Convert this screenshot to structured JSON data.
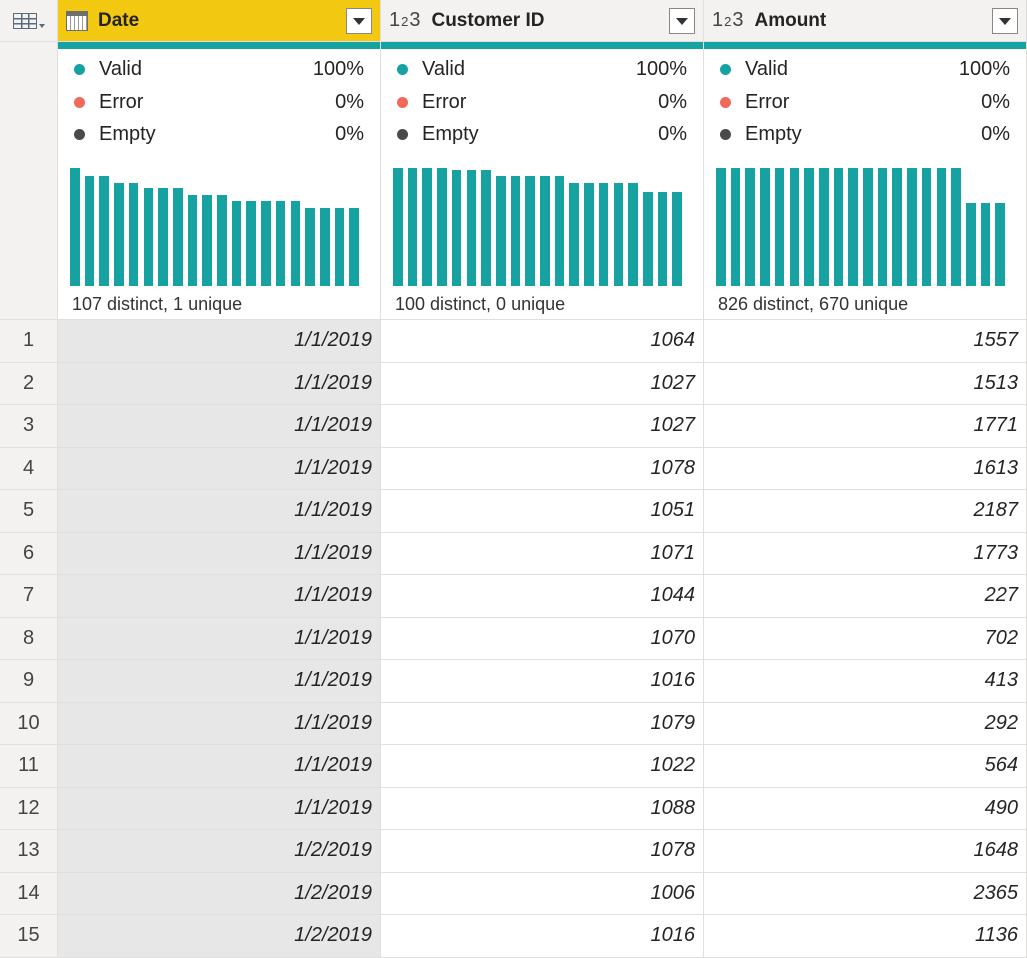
{
  "columns": [
    {
      "name": "Date",
      "type_icon": "calendar-icon",
      "selected": true,
      "quality": [
        {
          "label": "Valid",
          "pct": "100%",
          "color": "#17a2a2"
        },
        {
          "label": "Error",
          "pct": "0%",
          "color": "#f0695a"
        },
        {
          "label": "Empty",
          "pct": "0%",
          "color": "#4a4a4a"
        }
      ],
      "distribution": [
        1.0,
        0.93,
        0.93,
        0.87,
        0.87,
        0.83,
        0.83,
        0.83,
        0.77,
        0.77,
        0.77,
        0.72,
        0.72,
        0.72,
        0.72,
        0.72,
        0.66,
        0.66,
        0.66,
        0.66
      ],
      "summary": "107 distinct, 1 unique"
    },
    {
      "name": "Customer ID",
      "type_icon": "whole-number-icon",
      "selected": false,
      "quality": [
        {
          "label": "Valid",
          "pct": "100%",
          "color": "#17a2a2"
        },
        {
          "label": "Error",
          "pct": "0%",
          "color": "#f0695a"
        },
        {
          "label": "Empty",
          "pct": "0%",
          "color": "#4a4a4a"
        }
      ],
      "distribution": [
        1.0,
        1.0,
        1.0,
        1.0,
        0.98,
        0.98,
        0.98,
        0.93,
        0.93,
        0.93,
        0.93,
        0.93,
        0.87,
        0.87,
        0.87,
        0.87,
        0.87,
        0.8,
        0.8,
        0.8
      ],
      "summary": "100 distinct, 0 unique"
    },
    {
      "name": "Amount",
      "type_icon": "whole-number-icon",
      "selected": false,
      "quality": [
        {
          "label": "Valid",
          "pct": "100%",
          "color": "#17a2a2"
        },
        {
          "label": "Error",
          "pct": "0%",
          "color": "#f0695a"
        },
        {
          "label": "Empty",
          "pct": "0%",
          "color": "#4a4a4a"
        }
      ],
      "distribution": [
        1.0,
        1.0,
        1.0,
        1.0,
        1.0,
        1.0,
        1.0,
        1.0,
        1.0,
        1.0,
        1.0,
        1.0,
        1.0,
        1.0,
        1.0,
        1.0,
        1.0,
        0.7,
        0.7,
        0.7
      ],
      "summary": "826 distinct, 670 unique"
    }
  ],
  "type_icon_text": {
    "whole_number_main": "1",
    "whole_number_sup": "2",
    "whole_number_tail": "3"
  },
  "rows": [
    {
      "n": "1",
      "date": "1/1/2019",
      "customer_id": "1064",
      "amount": "1557"
    },
    {
      "n": "2",
      "date": "1/1/2019",
      "customer_id": "1027",
      "amount": "1513"
    },
    {
      "n": "3",
      "date": "1/1/2019",
      "customer_id": "1027",
      "amount": "1771"
    },
    {
      "n": "4",
      "date": "1/1/2019",
      "customer_id": "1078",
      "amount": "1613"
    },
    {
      "n": "5",
      "date": "1/1/2019",
      "customer_id": "1051",
      "amount": "2187"
    },
    {
      "n": "6",
      "date": "1/1/2019",
      "customer_id": "1071",
      "amount": "1773"
    },
    {
      "n": "7",
      "date": "1/1/2019",
      "customer_id": "1044",
      "amount": "227"
    },
    {
      "n": "8",
      "date": "1/1/2019",
      "customer_id": "1070",
      "amount": "702"
    },
    {
      "n": "9",
      "date": "1/1/2019",
      "customer_id": "1016",
      "amount": "413"
    },
    {
      "n": "10",
      "date": "1/1/2019",
      "customer_id": "1079",
      "amount": "292"
    },
    {
      "n": "11",
      "date": "1/1/2019",
      "customer_id": "1022",
      "amount": "564"
    },
    {
      "n": "12",
      "date": "1/1/2019",
      "customer_id": "1088",
      "amount": "490"
    },
    {
      "n": "13",
      "date": "1/2/2019",
      "customer_id": "1078",
      "amount": "1648"
    },
    {
      "n": "14",
      "date": "1/2/2019",
      "customer_id": "1006",
      "amount": "2365"
    },
    {
      "n": "15",
      "date": "1/2/2019",
      "customer_id": "1016",
      "amount": "1136"
    }
  ]
}
